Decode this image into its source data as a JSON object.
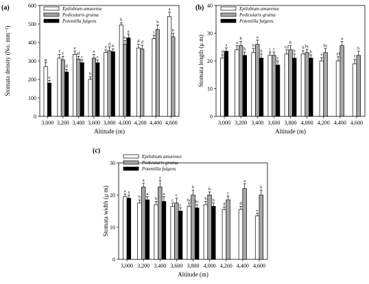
{
  "figure": {
    "panels": [
      "(a)",
      "(b)",
      "(c)"
    ]
  },
  "chart_data": [
    {
      "type": "bar",
      "panel": "(a)",
      "title": "",
      "xlabel": "Altitude (m)",
      "ylabel": "Stomata density (No. mm⁻²)",
      "ylim": [
        0,
        600
      ],
      "yticks": [
        0,
        100,
        200,
        300,
        400,
        500,
        600
      ],
      "categories": [
        "3,000",
        "3,200",
        "3,400",
        "3,600",
        "3,800",
        "4,000",
        "4,200",
        "4,400",
        "4,600"
      ],
      "legend_position": "top-left",
      "series": [
        {
          "name": "Epilobium amurense",
          "color": "#ffffff",
          "values": [
            270,
            315,
            335,
            200,
            345,
            495,
            370,
            420,
            540
          ],
          "errors": [
            20,
            20,
            18,
            15,
            15,
            12,
            20,
            20,
            25
          ],
          "letters": [
            "g",
            "f",
            "e",
            "h",
            "e",
            "b",
            "d",
            "c",
            "a"
          ]
        },
        {
          "name": "Pedicularis gruina",
          "color": "#a6a6a6",
          "values": [
            null,
            305,
            310,
            315,
            355,
            390,
            365,
            470,
            430
          ],
          "errors": [
            null,
            20,
            15,
            20,
            20,
            20,
            20,
            25,
            20
          ],
          "letters": [
            "",
            "f",
            "ef",
            "e",
            "d",
            "b",
            "d",
            "b",
            "b"
          ]
        },
        {
          "name": "Potentilla fulgens",
          "color": "#000000",
          "values": [
            180,
            240,
            290,
            290,
            350,
            425,
            null,
            null,
            null
          ],
          "errors": [
            15,
            15,
            15,
            15,
            15,
            20,
            null,
            null,
            null
          ],
          "letters": [
            "e",
            "d",
            "c",
            "c",
            "b",
            "a",
            "",
            "",
            ""
          ]
        }
      ]
    },
    {
      "type": "bar",
      "panel": "(b)",
      "title": "",
      "xlabel": "Altitude (m)",
      "ylabel": "Stomata length (μ m)",
      "ylim": [
        0,
        40
      ],
      "yticks": [
        0,
        10,
        20,
        30,
        40
      ],
      "categories": [
        "3,000",
        "3,200",
        "3,400",
        "3,600",
        "3,800",
        "4,000",
        "4,200",
        "4,400",
        "4,600"
      ],
      "legend_position": "top-left",
      "series": [
        {
          "name": "Epilobium amurense",
          "color": "#ffffff",
          "values": [
            21,
            24,
            23,
            22,
            22.5,
            22.5,
            20,
            20,
            19
          ],
          "errors": [
            1.2,
            1.5,
            1.5,
            1.2,
            1.5,
            1.2,
            1.2,
            1.5,
            1.5
          ],
          "letters": [
            "d",
            "a",
            "b",
            "c",
            "cd",
            "b",
            "e",
            "ef",
            "f"
          ]
        },
        {
          "name": "Pedicularis gruina",
          "color": "#a6a6a6",
          "values": [
            null,
            25.5,
            26,
            22,
            24,
            23,
            23,
            25.5,
            22
          ],
          "errors": [
            null,
            1.5,
            1.5,
            1.2,
            1.5,
            1.2,
            1.5,
            1.5,
            1.5
          ],
          "letters": [
            "",
            "b",
            "a",
            "c",
            "b",
            "bc",
            "bc",
            "a",
            "b"
          ]
        },
        {
          "name": "Potentilla fulgens",
          "color": "#000000",
          "values": [
            23.5,
            22,
            21,
            18.5,
            21,
            21,
            null,
            null,
            null
          ],
          "errors": [
            1.2,
            1.2,
            1.5,
            1.5,
            1.5,
            1.2,
            null,
            null,
            null
          ],
          "letters": [
            "a",
            "b",
            "b",
            "c",
            "b",
            "b",
            "",
            "",
            ""
          ]
        }
      ]
    },
    {
      "type": "bar",
      "panel": "(c)",
      "title": "",
      "xlabel": "Altitude (m)",
      "ylabel": "Stomata width (μ m)",
      "ylim": [
        0,
        30
      ],
      "yticks": [
        0,
        10,
        20,
        30
      ],
      "categories": [
        "3,000",
        "3,200",
        "3,400",
        "3,600",
        "3,800",
        "4,000",
        "4,200",
        "4,400",
        "4,600"
      ],
      "legend_position": "top-left",
      "series": [
        {
          "name": "Epilobium amurense",
          "color": "#ffffff",
          "values": [
            19.5,
            17.5,
            17,
            16.5,
            16.5,
            17,
            15.5,
            15.5,
            13.5
          ],
          "errors": [
            0.8,
            1,
            1,
            1,
            1,
            1,
            0.8,
            1,
            0.8
          ],
          "letters": [
            "a",
            "b",
            "b",
            "c",
            "bc",
            "b",
            "d",
            "d",
            "e"
          ]
        },
        {
          "name": "Pedicularis gruina",
          "color": "#a6a6a6",
          "values": [
            null,
            22.5,
            22.5,
            17.5,
            20,
            20,
            18.5,
            22,
            20
          ],
          "errors": [
            null,
            1.2,
            2,
            1.5,
            1.5,
            1,
            1.2,
            1.5,
            1.5
          ],
          "letters": [
            "",
            "a",
            "a",
            "c",
            "b",
            "b",
            "c",
            "a",
            "b"
          ]
        },
        {
          "name": "Potentilla fulgens",
          "color": "#000000",
          "values": [
            19,
            18.5,
            18,
            15,
            16,
            16.5,
            null,
            null,
            null
          ],
          "errors": [
            1,
            1,
            1.5,
            1,
            1,
            1,
            null,
            null,
            null
          ],
          "letters": [
            "a",
            "a",
            "a",
            "c",
            "bc",
            "b",
            "",
            "",
            ""
          ]
        }
      ]
    }
  ]
}
